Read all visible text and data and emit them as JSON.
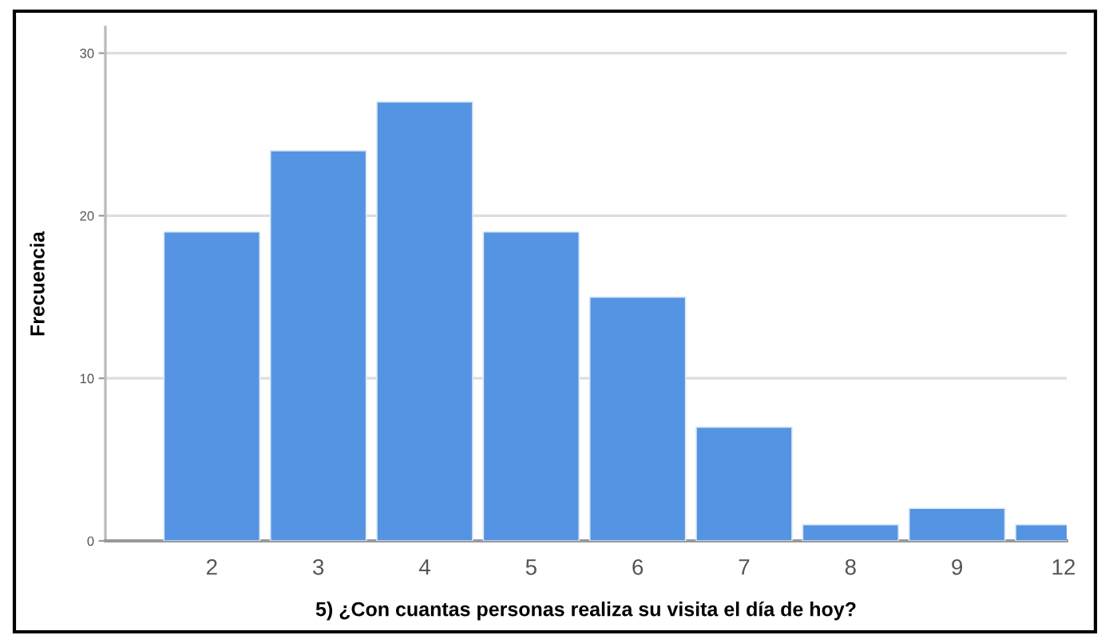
{
  "chart_data": {
    "type": "bar",
    "xlabel": "5) ¿Con cuantas personas realiza su visita el día de hoy?",
    "ylabel": "Frecuencia",
    "categories": [
      "2",
      "3",
      "4",
      "5",
      "6",
      "7",
      "8",
      "9",
      "12"
    ],
    "values": [
      19,
      24,
      27,
      19,
      15,
      7,
      1,
      2,
      1
    ],
    "color": "#5594e2",
    "ylim": [
      0,
      31.6
    ],
    "yticks": [
      0,
      10,
      20,
      30
    ],
    "grid": "y",
    "legend": false
  }
}
